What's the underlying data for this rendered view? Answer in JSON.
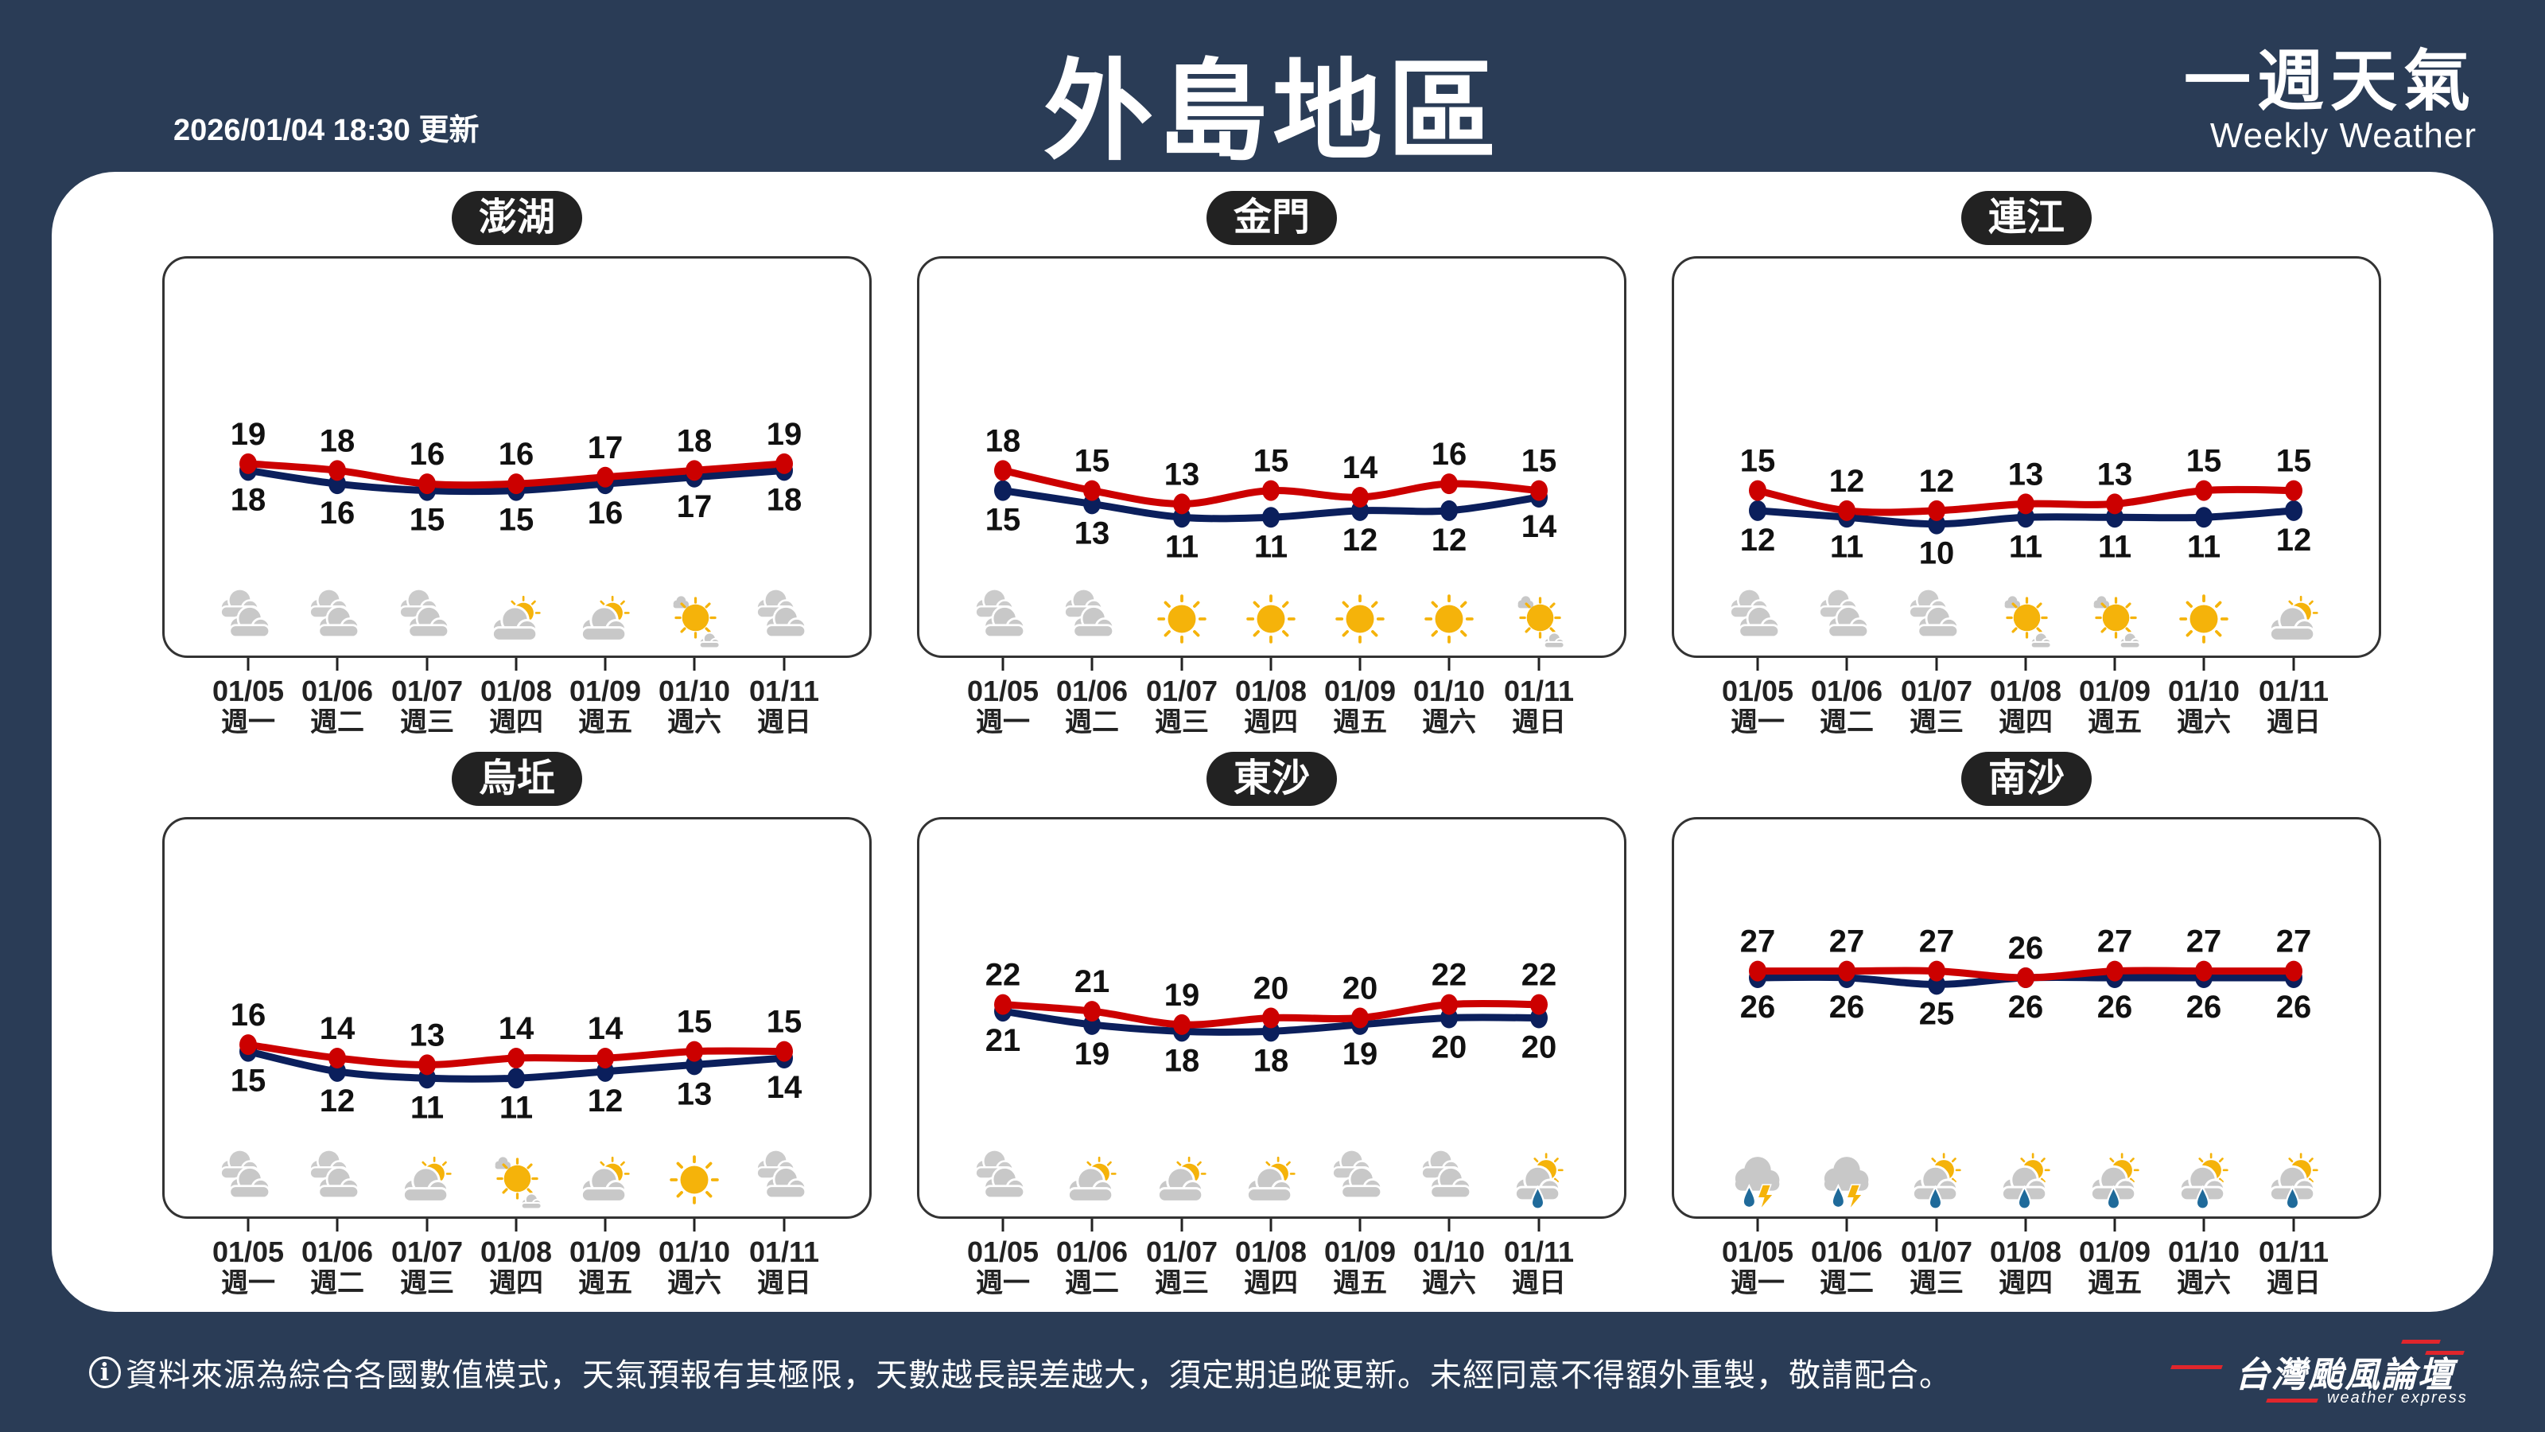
{
  "header": {
    "updated": "2026/01/04 18:30 更新",
    "title": "外島地區",
    "brand_title": "一週天氣",
    "brand_subtitle": "Weekly Weather"
  },
  "footer": {
    "info_icon": "info-circle-icon",
    "info_glyph": "i",
    "disclaimer": "資料來源為綜合各國數值模式，天氣預報有其極限，天數越長誤差越大，須定期追蹤更新。未經同意不得額外重製，敬請配合。",
    "logo_name": "台灣颱風論壇",
    "logo_sub": "weather express"
  },
  "colors": {
    "background": "#2a3c56",
    "high_line": "#cc0000",
    "low_line": "#0b1f5c",
    "cloud": "#c8c8c8",
    "sun": "#f5b30a",
    "rain": "#1f6a9a"
  },
  "chart_data": [
    {
      "type": "line",
      "title": "澎湖",
      "ylim": [
        -10,
        50
      ],
      "categories": [
        "01/05",
        "01/06",
        "01/07",
        "01/08",
        "01/09",
        "01/10",
        "01/11"
      ],
      "weekdays": [
        "週一",
        "週二",
        "週三",
        "週四",
        "週五",
        "週六",
        "週日"
      ],
      "series": [
        {
          "key": "high",
          "values": [
            19,
            18,
            16,
            16,
            17,
            18,
            19
          ]
        },
        {
          "key": "low",
          "values": [
            18,
            16,
            15,
            15,
            16,
            17,
            18
          ]
        }
      ],
      "icons": [
        "cloudy",
        "cloudy",
        "cloudy",
        "partly-cloudy",
        "partly-cloudy",
        "mostly-sunny",
        "cloudy"
      ]
    },
    {
      "type": "line",
      "title": "金門",
      "ylim": [
        -10,
        50
      ],
      "categories": [
        "01/05",
        "01/06",
        "01/07",
        "01/08",
        "01/09",
        "01/10",
        "01/11"
      ],
      "weekdays": [
        "週一",
        "週二",
        "週三",
        "週四",
        "週五",
        "週六",
        "週日"
      ],
      "series": [
        {
          "key": "high",
          "values": [
            18,
            15,
            13,
            15,
            14,
            16,
            15
          ]
        },
        {
          "key": "low",
          "values": [
            15,
            13,
            11,
            11,
            12,
            12,
            14
          ]
        }
      ],
      "icons": [
        "cloudy",
        "cloudy",
        "sunny",
        "sunny",
        "sunny",
        "sunny",
        "mostly-sunny"
      ]
    },
    {
      "type": "line",
      "title": "連江",
      "ylim": [
        -10,
        50
      ],
      "categories": [
        "01/05",
        "01/06",
        "01/07",
        "01/08",
        "01/09",
        "01/10",
        "01/11"
      ],
      "weekdays": [
        "週一",
        "週二",
        "週三",
        "週四",
        "週五",
        "週六",
        "週日"
      ],
      "series": [
        {
          "key": "high",
          "values": [
            15,
            12,
            12,
            13,
            13,
            15,
            15
          ]
        },
        {
          "key": "low",
          "values": [
            12,
            11,
            10,
            11,
            11,
            11,
            12
          ]
        }
      ],
      "icons": [
        "cloudy",
        "cloudy",
        "cloudy",
        "mostly-sunny",
        "mostly-sunny",
        "sunny",
        "partly-cloudy"
      ]
    },
    {
      "type": "line",
      "title": "烏坵",
      "ylim": [
        -10,
        50
      ],
      "categories": [
        "01/05",
        "01/06",
        "01/07",
        "01/08",
        "01/09",
        "01/10",
        "01/11"
      ],
      "weekdays": [
        "週一",
        "週二",
        "週三",
        "週四",
        "週五",
        "週六",
        "週日"
      ],
      "series": [
        {
          "key": "high",
          "values": [
            16,
            14,
            13,
            14,
            14,
            15,
            15
          ]
        },
        {
          "key": "low",
          "values": [
            15,
            12,
            11,
            11,
            12,
            13,
            14
          ]
        }
      ],
      "icons": [
        "cloudy",
        "cloudy",
        "partly-cloudy",
        "mostly-sunny",
        "partly-cloudy",
        "sunny",
        "cloudy"
      ]
    },
    {
      "type": "line",
      "title": "東沙",
      "ylim": [
        -10,
        50
      ],
      "categories": [
        "01/05",
        "01/06",
        "01/07",
        "01/08",
        "01/09",
        "01/10",
        "01/11"
      ],
      "weekdays": [
        "週一",
        "週二",
        "週三",
        "週四",
        "週五",
        "週六",
        "週日"
      ],
      "series": [
        {
          "key": "high",
          "values": [
            22,
            21,
            19,
            20,
            20,
            22,
            22
          ]
        },
        {
          "key": "low",
          "values": [
            21,
            19,
            18,
            18,
            19,
            20,
            20
          ]
        }
      ],
      "icons": [
        "cloudy",
        "partly-cloudy",
        "partly-cloudy",
        "partly-cloudy",
        "cloudy",
        "cloudy",
        "partly-cloudy-rain"
      ]
    },
    {
      "type": "line",
      "title": "南沙",
      "ylim": [
        -10,
        50
      ],
      "categories": [
        "01/05",
        "01/06",
        "01/07",
        "01/08",
        "01/09",
        "01/10",
        "01/11"
      ],
      "weekdays": [
        "週一",
        "週二",
        "週三",
        "週四",
        "週五",
        "週六",
        "週日"
      ],
      "series": [
        {
          "key": "high",
          "values": [
            27,
            27,
            27,
            26,
            27,
            27,
            27
          ]
        },
        {
          "key": "low",
          "values": [
            26,
            26,
            25,
            26,
            26,
            26,
            26
          ]
        }
      ],
      "icons": [
        "thunder-rain",
        "thunder-rain",
        "partly-cloudy-rain",
        "partly-cloudy-rain",
        "partly-cloudy-rain",
        "partly-cloudy-rain",
        "partly-cloudy-rain"
      ]
    }
  ]
}
